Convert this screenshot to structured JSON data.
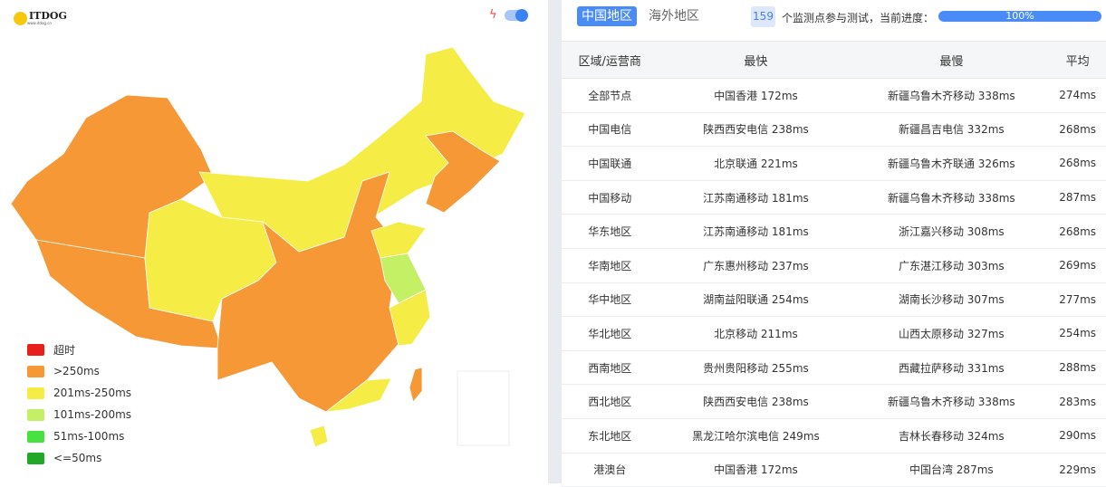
{
  "logo": {
    "text": "ITDOG",
    "sub": "www.itdog.cn"
  },
  "colors": {
    "timeout": "#e8201c",
    "gt250": "#f69836",
    "r201_250": "#f5ec45",
    "r101_200": "#c3f064",
    "r51_100": "#47e240",
    "le50": "#22a726",
    "accent": "#4a8cf7"
  },
  "legend": [
    "超时",
    ">250ms",
    "201ms-250ms",
    "101ms-200ms",
    "51ms-100ms",
    "<=50ms"
  ],
  "tabs": [
    {
      "label": "中国地区",
      "active": true
    },
    {
      "label": "海外地区",
      "active": false
    }
  ],
  "status": {
    "count": "159",
    "text": "个监测点参与测试，当前进度：",
    "progress": "100%",
    "progress_value": 100
  },
  "table": {
    "headers": [
      "区域/运营商",
      "最快",
      "最慢",
      "平均"
    ],
    "rows": [
      [
        "全部节点",
        "中国香港 172ms",
        "新疆乌鲁木齐移动 338ms",
        "274ms"
      ],
      [
        "中国电信",
        "陕西西安电信 238ms",
        "新疆昌吉电信 332ms",
        "268ms"
      ],
      [
        "中国联通",
        "北京联通 221ms",
        "新疆乌鲁木齐联通 326ms",
        "268ms"
      ],
      [
        "中国移动",
        "江苏南通移动 181ms",
        "新疆乌鲁木齐移动 338ms",
        "287ms"
      ],
      [
        "华东地区",
        "江苏南通移动 181ms",
        "浙江嘉兴移动 308ms",
        "268ms"
      ],
      [
        "华南地区",
        "广东惠州移动 237ms",
        "广东湛江移动 303ms",
        "269ms"
      ],
      [
        "华中地区",
        "湖南益阳联通 254ms",
        "湖南长沙移动 307ms",
        "277ms"
      ],
      [
        "华北地区",
        "北京移动 211ms",
        "山西太原移动 327ms",
        "254ms"
      ],
      [
        "西南地区",
        "贵州贵阳移动 255ms",
        "西藏拉萨移动 331ms",
        "288ms"
      ],
      [
        "西北地区",
        "陕西西安电信 238ms",
        "新疆乌鲁木齐移动 338ms",
        "283ms"
      ],
      [
        "东北地区",
        "黑龙江哈尔滨电信 249ms",
        "吉林长春移动 324ms",
        "290ms"
      ],
      [
        "港澳台",
        "中国香港 172ms",
        "中国台湾 287ms",
        "229ms"
      ]
    ]
  }
}
